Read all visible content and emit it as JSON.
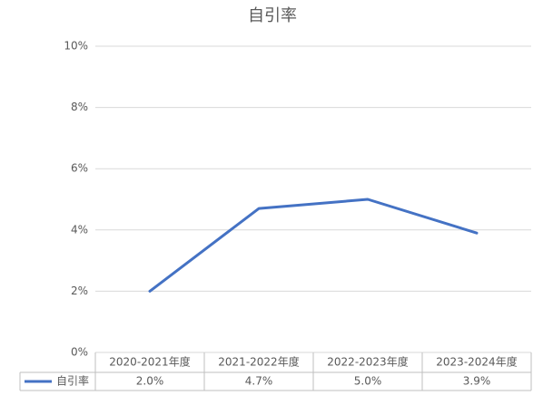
{
  "chart_data": {
    "type": "line",
    "title": "自引率",
    "categories": [
      "2020-2021年度",
      "2021-2022年度",
      "2022-2023年度",
      "2023-2024年度"
    ],
    "series": [
      {
        "name": "自引率",
        "color": "#4472c4",
        "values": [
          2.0,
          4.7,
          5.0,
          3.9
        ],
        "value_labels": [
          "2.0%",
          "4.7%",
          "5.0%",
          "3.9%"
        ]
      }
    ],
    "ylim": [
      0,
      10
    ],
    "yticks": [
      {
        "value": 0,
        "label": "0%"
      },
      {
        "value": 2,
        "label": "2%"
      },
      {
        "value": 4,
        "label": "4%"
      },
      {
        "value": 6,
        "label": "6%"
      },
      {
        "value": 8,
        "label": "8%"
      },
      {
        "value": 10,
        "label": "10%"
      }
    ],
    "grid": true,
    "data_table": true
  }
}
